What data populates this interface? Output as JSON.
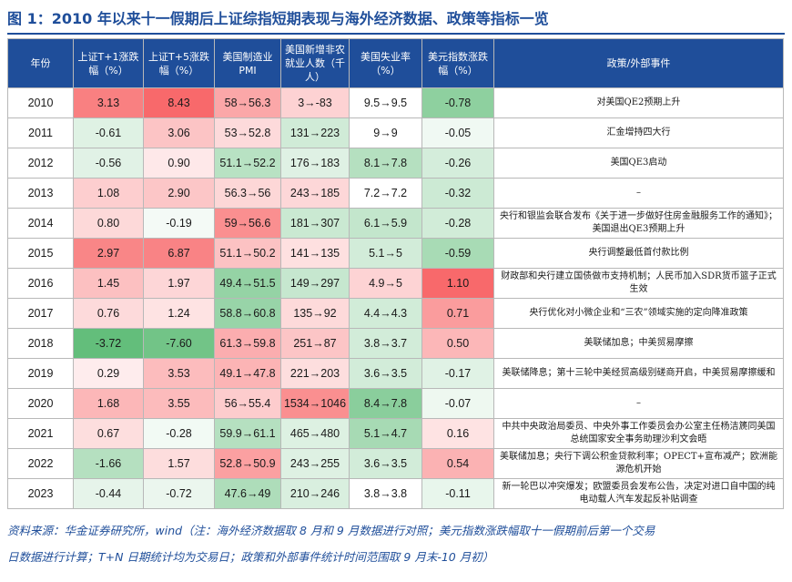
{
  "title": "图 1：2010 年以来十一假期后上证综指短期表现与海外经济数据、政策等指标一览",
  "headers": [
    "年份",
    "上证T+1涨跌幅（%）",
    "上证T+5涨跌幅（%）",
    "美国制造业PMI",
    "美国新增非农就业人数（千人）",
    "美国失业率（%）",
    "美元指数涨跌幅（%）",
    "政策/外部事件"
  ],
  "rows": [
    {
      "year": "2010",
      "t1": "3.13",
      "t5": "8.43",
      "pmi": "58→56.3",
      "nfp": "3→-83",
      "unemp": "9.5→9.5",
      "usd": "-0.78",
      "event": "对美国QE2预期上升"
    },
    {
      "year": "2011",
      "t1": "-0.61",
      "t5": "3.06",
      "pmi": "53→52.8",
      "nfp": "131→223",
      "unemp": "9→9",
      "usd": "-0.05",
      "event": "汇金增持四大行"
    },
    {
      "year": "2012",
      "t1": "-0.56",
      "t5": "0.90",
      "pmi": "51.1→52.2",
      "nfp": "176→183",
      "unemp": "8.1→7.8",
      "usd": "-0.26",
      "event": "美国QE3启动"
    },
    {
      "year": "2013",
      "t1": "1.08",
      "t5": "2.90",
      "pmi": "56.3→56",
      "nfp": "243→185",
      "unemp": "7.2→7.2",
      "usd": "-0.32",
      "event": "–"
    },
    {
      "year": "2014",
      "t1": "0.80",
      "t5": "-0.19",
      "pmi": "59→56.6",
      "nfp": "181→307",
      "unemp": "6.1→5.9",
      "usd": "-0.28",
      "event": "央行和银监会联合发布《关于进一步做好住房金融服务工作的通知》；美国退出QE3预期上升"
    },
    {
      "year": "2015",
      "t1": "2.97",
      "t5": "6.87",
      "pmi": "51.1→50.2",
      "nfp": "141→135",
      "unemp": "5.1→5",
      "usd": "-0.59",
      "event": "央行调整最低首付款比例"
    },
    {
      "year": "2016",
      "t1": "1.45",
      "t5": "1.97",
      "pmi": "49.4→51.5",
      "nfp": "149→297",
      "unemp": "4.9→5",
      "usd": "1.10",
      "event": "财政部和央行建立国债做市支持机制；人民币加入SDR货币篮子正式生效"
    },
    {
      "year": "2017",
      "t1": "0.76",
      "t5": "1.24",
      "pmi": "58.8→60.8",
      "nfp": "135→92",
      "unemp": "4.4→4.3",
      "usd": "0.71",
      "event": "央行优化对小微企业和“三农”领域实施的定向降准政策"
    },
    {
      "year": "2018",
      "t1": "-3.72",
      "t5": "-7.60",
      "pmi": "61.3→59.8",
      "nfp": "251→87",
      "unemp": "3.8→3.7",
      "usd": "0.50",
      "event": "美联储加息；中美贸易摩擦"
    },
    {
      "year": "2019",
      "t1": "0.29",
      "t5": "3.53",
      "pmi": "49.1→47.8",
      "nfp": "221→203",
      "unemp": "3.6→3.5",
      "usd": "-0.17",
      "event": "美联储降息；第十三轮中美经贸高级别磋商开启，中美贸易摩擦缓和"
    },
    {
      "year": "2020",
      "t1": "1.68",
      "t5": "3.55",
      "pmi": "56→55.4",
      "nfp": "1534→1046",
      "unemp": "8.4→7.8",
      "usd": "-0.07",
      "event": "–"
    },
    {
      "year": "2021",
      "t1": "0.67",
      "t5": "-0.28",
      "pmi": "59.9→61.1",
      "nfp": "465→480",
      "unemp": "5.1→4.7",
      "usd": "0.16",
      "event": "中共中央政治局委员、中央外事工作委员会办公室主任杨洁篪同美国总统国家安全事务助理沙利文会晤"
    },
    {
      "year": "2022",
      "t1": "-1.66",
      "t5": "1.57",
      "pmi": "52.8→50.9",
      "nfp": "243→255",
      "unemp": "3.6→3.5",
      "usd": "0.54",
      "event": "美联储加息；央行下调公积金贷款利率；OPECT+宣布减产；欧洲能源危机开始"
    },
    {
      "year": "2023",
      "t1": "-0.44",
      "t5": "-0.72",
      "pmi": "47.6→49",
      "nfp": "210→246",
      "unemp": "3.8→3.8",
      "usd": "-0.11",
      "event": "新一轮巴以冲突爆发；欧盟委员会发布公告，决定对进口自中国的纯电动载人汽车发起反补贴调查"
    }
  ],
  "footer": {
    "line1": "资料来源：华金证券研究所，wind（注：海外经济数据取 8 月和 9 月数据进行对照；美元指数涨跌幅取十一假期前后第一个交易",
    "line2": "日数据进行计算；T+N 日期统计均为交易日；政策和外部事件统计时间范围取 9 月末-10 月初）"
  },
  "colors": {
    "header_bg": "#1f4e9a",
    "title_text": "#1f4e9a",
    "positive": "#f8696b",
    "negative": "#63be7b",
    "neutral": "#ffffff"
  }
}
